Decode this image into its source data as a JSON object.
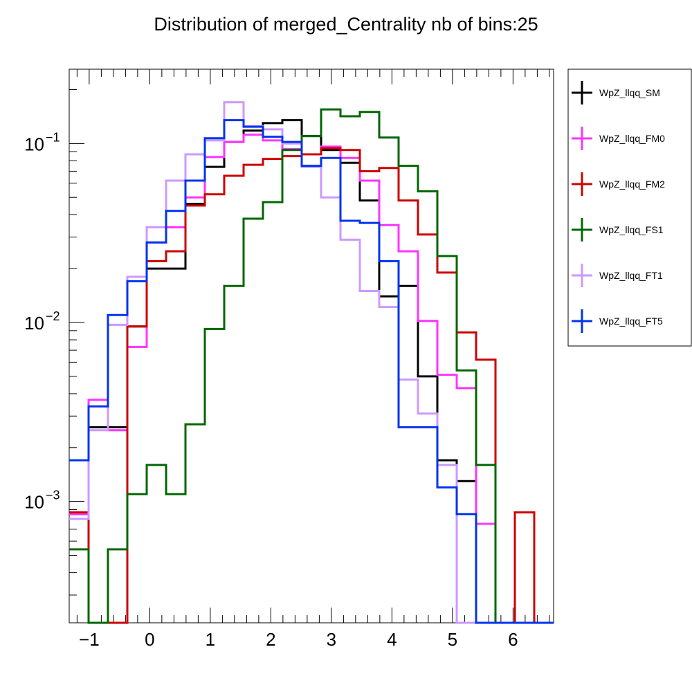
{
  "chart_data": {
    "type": "step-histogram",
    "title": "Distribution of merged_Centrality nb of bins:25",
    "xlabel": "",
    "ylabel": "",
    "xlim": [
      -1.33,
      6.67
    ],
    "ylim": [
      0.00021,
      0.26
    ],
    "yscale": "log",
    "legend_position": "right",
    "x_ticks": [
      "−1",
      "0",
      "1",
      "2",
      "3",
      "4",
      "5",
      "6"
    ],
    "y_ticks": [
      {
        "base": "10",
        "exp": "−1",
        "value": 0.1
      },
      {
        "base": "10",
        "exp": "−2",
        "value": 0.01
      },
      {
        "base": "10",
        "exp": "−3",
        "value": 0.001
      }
    ],
    "bin_edges": [
      -1.33,
      -1.01,
      -0.69,
      -0.37,
      -0.05,
      0.27,
      0.59,
      0.91,
      1.23,
      1.55,
      1.87,
      2.19,
      2.51,
      2.83,
      3.15,
      3.47,
      3.79,
      4.11,
      4.43,
      4.75,
      5.07,
      5.39,
      5.71,
      6.03,
      6.35,
      6.67
    ],
    "series": [
      {
        "name": "WpZ_llqq_SM",
        "color": "#000000",
        "values": [
          0.00085,
          0.0026,
          0.0026,
          0.0095,
          0.02,
          0.02,
          0.046,
          0.074,
          0.102,
          0.118,
          0.13,
          0.135,
          0.11,
          0.092,
          0.078,
          0.048,
          0.014,
          0.016,
          0.005,
          0.0017,
          0.0013,
          0,
          0,
          0,
          0
        ]
      },
      {
        "name": "WpZ_llqq_FM0",
        "color": "#ff33ff",
        "values": [
          0.00085,
          0.0037,
          0.0025,
          0.0073,
          0.028,
          0.034,
          0.05,
          0.084,
          0.102,
          0.112,
          0.104,
          0.093,
          0.087,
          0.096,
          0.083,
          0.062,
          0.035,
          0.025,
          0.0102,
          0.0051,
          0.0043,
          0.00075,
          0,
          0,
          0
        ]
      },
      {
        "name": "WpZ_llqq_FM2",
        "color": "#cc0000",
        "values": [
          0.00087,
          0.0,
          0.0,
          0.0095,
          0.022,
          0.025,
          0.045,
          0.052,
          0.066,
          0.076,
          0.082,
          0.085,
          0.087,
          0.094,
          0.092,
          0.07,
          0.073,
          0.048,
          0.031,
          0.019,
          0.0088,
          0.0062,
          0.0,
          0.00087,
          0
        ]
      },
      {
        "name": "WpZ_llqq_FS1",
        "color": "#006600",
        "values": [
          0.00054,
          0.0,
          0.00054,
          0.0011,
          0.0016,
          0.0011,
          0.0027,
          0.0092,
          0.016,
          0.038,
          0.047,
          0.092,
          0.11,
          0.155,
          0.142,
          0.15,
          0.108,
          0.075,
          0.054,
          0.0235,
          0.0054,
          0.0016,
          0,
          0,
          0
        ]
      },
      {
        "name": "WpZ_llqq_FT1",
        "color": "#cc99ff",
        "values": [
          0.0008,
          0.0025,
          0.0097,
          0.018,
          0.034,
          0.062,
          0.087,
          0.104,
          0.17,
          0.125,
          0.12,
          0.1,
          0.074,
          0.05,
          0.029,
          0.015,
          0.0122,
          0.0048,
          0.0031,
          0.0016,
          0,
          0,
          0,
          0,
          0
        ]
      },
      {
        "name": "WpZ_llqq_FT5",
        "color": "#0033ee",
        "values": [
          0.0017,
          0.0034,
          0.011,
          0.017,
          0.028,
          0.042,
          0.062,
          0.107,
          0.135,
          0.124,
          0.109,
          0.102,
          0.075,
          0.083,
          0.037,
          0.036,
          0.022,
          0.0026,
          0.0026,
          0.0012,
          0.00085,
          0,
          0,
          0,
          0
        ]
      }
    ]
  }
}
